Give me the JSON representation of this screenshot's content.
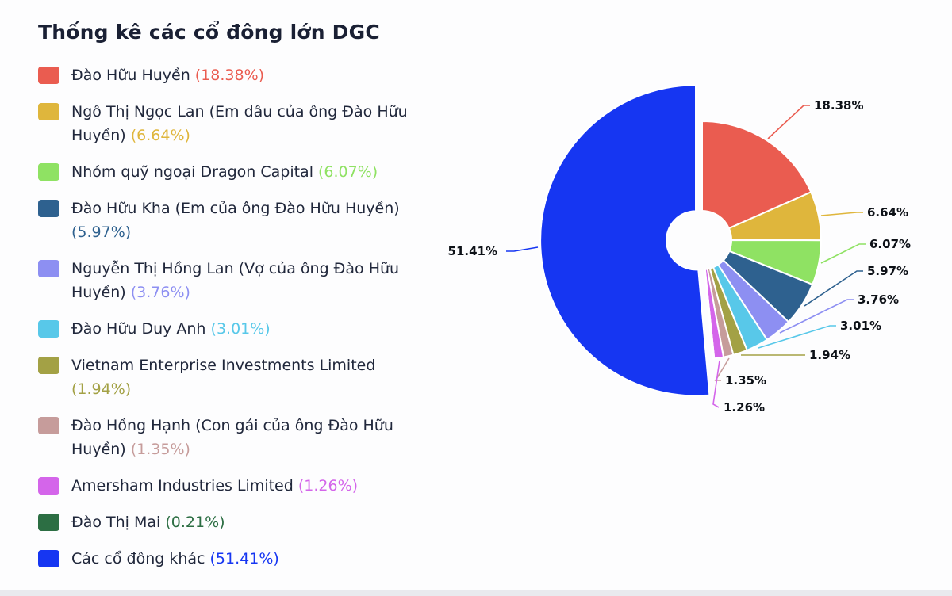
{
  "chart_data": {
    "type": "pie",
    "title": "Thống kê các cổ đông lớn DGC",
    "donut": true,
    "start_angle_deg": -90,
    "direction": "clockwise",
    "legend_position": "left",
    "slices": [
      {
        "name": "Đào Hữu Huyền",
        "value": 18.38,
        "label": "18.38%",
        "color": "#ea5c50"
      },
      {
        "name": "Ngô Thị Ngọc Lan (Em dâu của ông Đào Hữu Huyền)",
        "value": 6.64,
        "label": "6.64%",
        "color": "#dfb63c"
      },
      {
        "name": "Nhóm quỹ ngoại Dragon Capital",
        "value": 6.07,
        "label": "6.07%",
        "color": "#8fe263"
      },
      {
        "name": "Đào Hữu Kha (Em của ông Đào Hữu Huyền)",
        "value": 5.97,
        "label": "5.97%",
        "color": "#2e618f"
      },
      {
        "name": "Nguyễn Thị Hồng Lan (Vợ của ông Đào Hữu Huyền)",
        "value": 3.76,
        "label": "3.76%",
        "color": "#8d8ff2"
      },
      {
        "name": "Đào Hữu Duy Anh",
        "value": 3.01,
        "label": "3.01%",
        "color": "#58c8e9"
      },
      {
        "name": "Vietnam Enterprise Investments Limited",
        "value": 1.94,
        "label": "1.94%",
        "color": "#a3a145"
      },
      {
        "name": "Đào Hồng Hạnh (Con gái của ông Đào Hữu Huyền)",
        "value": 1.35,
        "label": "1.35%",
        "color": "#c69c9b"
      },
      {
        "name": "Amersham Industries Limited",
        "value": 1.26,
        "label": "1.26%",
        "color": "#d465ea"
      },
      {
        "name": "Đào Thị Mai",
        "value": 0.21,
        "label": "0.21%",
        "color": "#2c6e43"
      },
      {
        "name": "Các cổ đông khác",
        "value": 51.41,
        "label": "51.41%",
        "color": "#1636f2"
      }
    ]
  }
}
